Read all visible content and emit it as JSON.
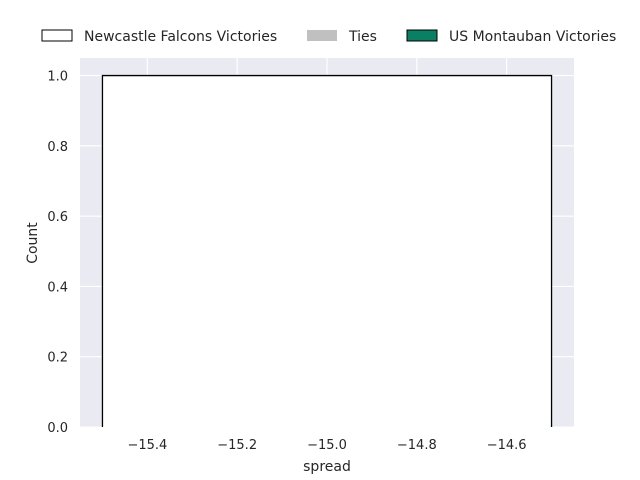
{
  "chart_data": {
    "type": "bar",
    "title": "",
    "xlabel": "spread",
    "ylabel": "Count",
    "xlim": [
      -15.55,
      -14.45
    ],
    "ylim": [
      0,
      1.05
    ],
    "xticks": [
      -15.4,
      -15.2,
      -15.0,
      -14.8,
      -14.6
    ],
    "xtick_labels": [
      "−15.4",
      "−15.2",
      "−15.0",
      "−14.8",
      "−14.6"
    ],
    "yticks": [
      0.0,
      0.2,
      0.4,
      0.6,
      0.8,
      1.0
    ],
    "ytick_labels": [
      "0.0",
      "0.2",
      "0.4",
      "0.6",
      "0.8",
      "1.0"
    ],
    "grid": true,
    "legend_position": "top",
    "series": [
      {
        "name": "Newcastle Falcons Victories",
        "color": "#ffffff",
        "edgecolor": "#000000",
        "bins": [
          {
            "x0": -15.5,
            "x1": -14.5,
            "count": 1
          }
        ]
      },
      {
        "name": "Ties",
        "color": "#c0c0c0",
        "edgecolor": "#c0c0c0",
        "bins": []
      },
      {
        "name": "US Montauban Victories",
        "color": "#0a7f63",
        "edgecolor": "#000000",
        "bins": []
      }
    ]
  }
}
